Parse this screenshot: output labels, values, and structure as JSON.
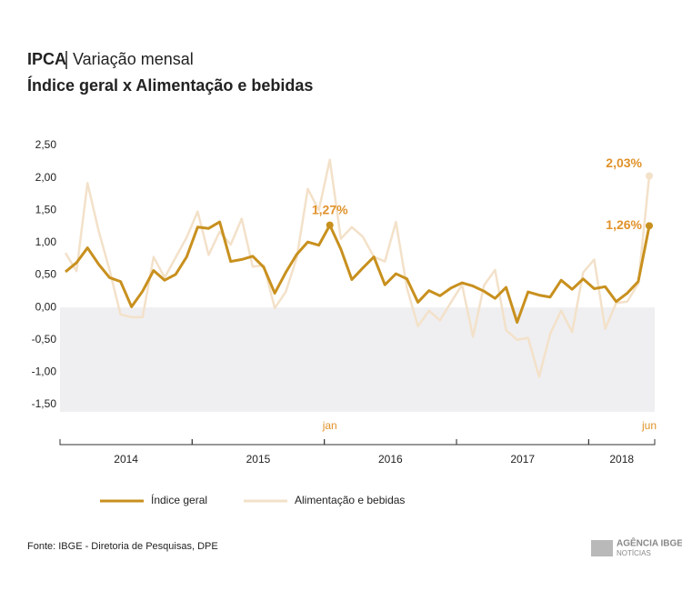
{
  "chart_data": {
    "type": "line",
    "title": "IPCA",
    "title_suffix": "Variação mensal",
    "subtitle": "Índice geral x Alimentação e bebidas",
    "source": "Fonte: IBGE - Diretoria de Pesquisas, DPE",
    "logo": [
      "AGÊNCIA IBGE",
      "NOTÍCIAS"
    ],
    "categories": [
      null,
      null,
      null,
      null,
      null,
      null,
      null,
      null,
      null,
      null,
      null,
      null,
      null,
      null,
      null,
      null,
      null,
      null,
      null,
      null,
      null,
      null,
      null,
      null,
      "jan",
      null,
      null,
      null,
      null,
      null,
      null,
      null,
      null,
      null,
      null,
      null,
      null,
      null,
      null,
      null,
      null,
      null,
      null,
      null,
      null,
      null,
      null,
      null,
      null,
      null,
      null,
      null,
      null,
      "jun"
    ],
    "year_groups": [
      {
        "label": "2014",
        "count": 12
      },
      {
        "label": "2015",
        "count": 12
      },
      {
        "label": "2016",
        "count": 12
      },
      {
        "label": "2017",
        "count": 12
      },
      {
        "label": "2018",
        "count": 6
      }
    ],
    "series": [
      {
        "name": "Índice geral",
        "color": "#c8901e",
        "values": [
          0.55,
          0.69,
          0.92,
          0.67,
          0.46,
          0.4,
          0.01,
          0.25,
          0.57,
          0.42,
          0.51,
          0.78,
          1.24,
          1.22,
          1.32,
          0.71,
          0.74,
          0.79,
          0.62,
          0.22,
          0.54,
          0.82,
          1.01,
          0.96,
          1.27,
          0.9,
          0.43,
          0.61,
          0.78,
          0.35,
          0.52,
          0.44,
          0.08,
          0.26,
          0.18,
          0.3,
          0.38,
          0.33,
          0.25,
          0.14,
          0.31,
          -0.23,
          0.24,
          0.19,
          0.16,
          0.42,
          0.28,
          0.44,
          0.29,
          0.32,
          0.09,
          0.22,
          0.4,
          1.26
        ],
        "value_labels": [
          null,
          null,
          null,
          null,
          null,
          null,
          null,
          null,
          null,
          null,
          null,
          null,
          null,
          null,
          null,
          null,
          null,
          null,
          null,
          null,
          null,
          null,
          null,
          null,
          "1,27%",
          null,
          null,
          null,
          null,
          null,
          null,
          null,
          null,
          null,
          null,
          null,
          null,
          null,
          null,
          null,
          null,
          null,
          null,
          null,
          null,
          null,
          null,
          null,
          null,
          null,
          null,
          null,
          null,
          "1,26%"
        ]
      },
      {
        "name": "Alimentação e bebidas",
        "color": "#f3e1c9",
        "values": [
          0.84,
          0.56,
          1.92,
          1.19,
          0.58,
          -0.11,
          -0.15,
          -0.15,
          0.78,
          0.46,
          0.77,
          1.08,
          1.48,
          0.81,
          1.17,
          0.97,
          1.37,
          0.63,
          0.65,
          -0.01,
          0.24,
          0.77,
          1.83,
          1.5,
          2.28,
          1.06,
          1.24,
          1.09,
          0.78,
          0.71,
          1.32,
          0.3,
          -0.29,
          -0.05,
          -0.2,
          0.08,
          0.35,
          -0.45,
          0.34,
          0.58,
          -0.35,
          -0.5,
          -0.47,
          -1.07,
          -0.41,
          -0.05,
          -0.38,
          0.54,
          0.74,
          -0.33,
          0.07,
          0.09,
          0.37,
          2.03
        ],
        "value_labels": [
          null,
          null,
          null,
          null,
          null,
          null,
          null,
          null,
          null,
          null,
          null,
          null,
          null,
          null,
          null,
          null,
          null,
          null,
          null,
          null,
          null,
          null,
          null,
          null,
          null,
          null,
          null,
          null,
          null,
          null,
          null,
          null,
          null,
          null,
          null,
          null,
          null,
          null,
          null,
          null,
          null,
          null,
          null,
          null,
          null,
          null,
          null,
          null,
          null,
          null,
          null,
          null,
          null,
          "2,03%"
        ]
      }
    ],
    "label_color": "#e0922a",
    "negative_shade": "#efeff1",
    "ylim": [
      -1.5,
      2.5
    ],
    "yticks": [
      {
        "value": -1.5,
        "label": "-1,50"
      },
      {
        "value": -1,
        "label": "-1,00"
      },
      {
        "value": -0.5,
        "label": "-0,50"
      },
      {
        "value": 0,
        "label": "0,00"
      },
      {
        "value": 0.5,
        "label": "0,50"
      },
      {
        "value": 1,
        "label": "1,00"
      },
      {
        "value": 1.5,
        "label": "1,50"
      },
      {
        "value": 2,
        "label": "2,00"
      },
      {
        "value": 2.5,
        "label": "2,50"
      }
    ]
  }
}
